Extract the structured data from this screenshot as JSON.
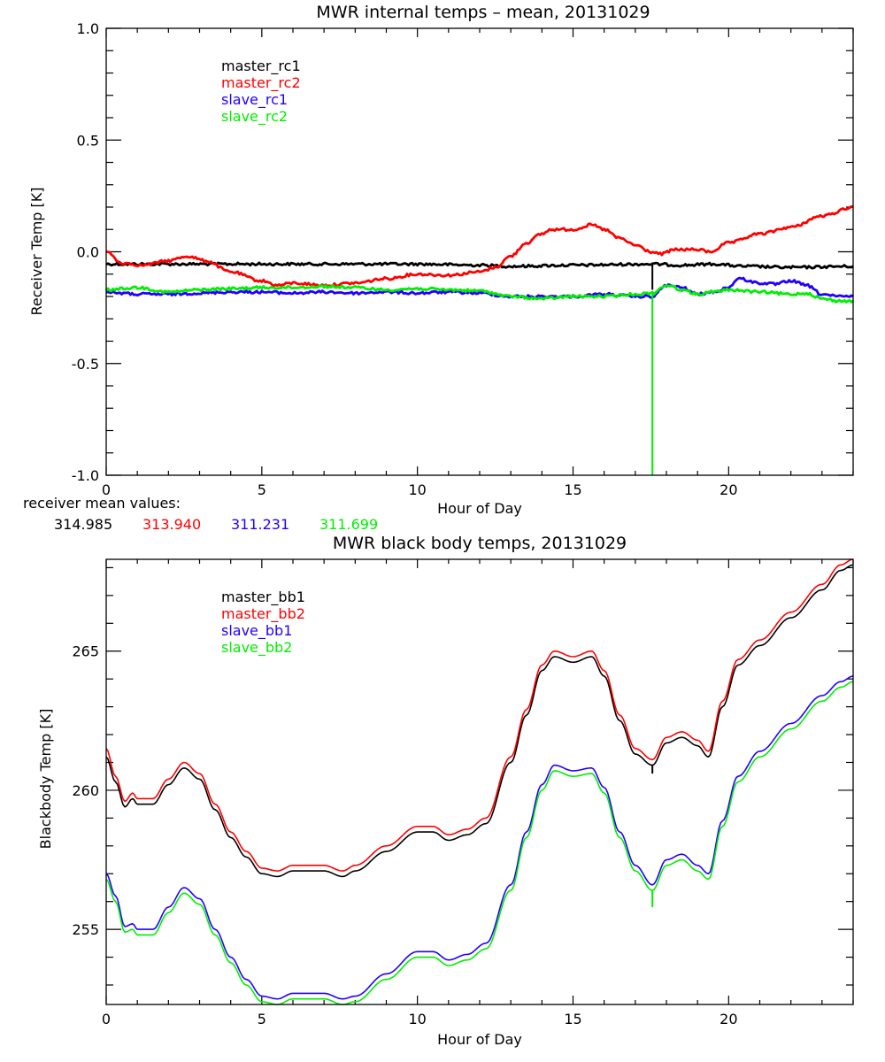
{
  "chart_data": [
    {
      "type": "line",
      "title": "MWR internal temps – mean, 20131029",
      "xlabel": "Hour of Day",
      "ylabel": "Receiver Temp [K]",
      "xlim": [
        0,
        24
      ],
      "ylim": [
        -1.0,
        1.0
      ],
      "xticks": [
        0,
        5,
        10,
        15,
        20
      ],
      "xtick_labels": [
        "0",
        "5",
        "10",
        "15",
        "20"
      ],
      "x_minor_step": 1,
      "yticks": [
        -1.0,
        -0.5,
        0.0,
        0.5,
        1.0
      ],
      "ytick_labels": [
        "-1.0",
        "-0.5",
        "0.0",
        "0.5",
        "1.0"
      ],
      "y_minor_step": 0.1,
      "grid": false,
      "legend": {
        "placement": "top-left-inside",
        "entries": [
          "master_rc1",
          "master_rc2",
          "slave_rc1",
          "slave_rc2"
        ]
      },
      "series": [
        {
          "name": "master_rc1",
          "color": "#000000",
          "noisy": true,
          "x": [
            0,
            2,
            4,
            6,
            8,
            10,
            12,
            13,
            15,
            17.5,
            18.5,
            19.5,
            20.5,
            22,
            24
          ],
          "y": [
            -0.055,
            -0.055,
            -0.055,
            -0.055,
            -0.055,
            -0.055,
            -0.06,
            -0.065,
            -0.06,
            -0.055,
            -0.06,
            -0.055,
            -0.065,
            -0.07,
            -0.065
          ],
          "spike": {
            "x": 17.55,
            "y": -0.17
          }
        },
        {
          "name": "master_rc2",
          "color": "#ff0000",
          "noisy": true,
          "x": [
            0,
            0.5,
            1.2,
            2,
            2.6,
            3.2,
            4,
            5,
            5.5,
            6,
            7,
            8,
            9,
            10,
            11,
            12,
            12.5,
            13,
            13.5,
            14,
            14.3,
            15,
            15.6,
            16,
            16.5,
            17,
            17.5,
            17.8,
            18.3,
            19,
            19.4,
            20,
            21,
            22,
            23,
            24
          ],
          "y": [
            0.0,
            -0.05,
            -0.06,
            -0.04,
            -0.02,
            -0.04,
            -0.09,
            -0.13,
            -0.15,
            -0.14,
            -0.15,
            -0.14,
            -0.12,
            -0.1,
            -0.105,
            -0.09,
            -0.07,
            -0.02,
            0.04,
            0.08,
            0.1,
            0.1,
            0.12,
            0.1,
            0.06,
            0.03,
            0.0,
            -0.01,
            0.01,
            0.01,
            0.0,
            0.04,
            0.08,
            0.11,
            0.16,
            0.2
          ]
        },
        {
          "name": "slave_rc1",
          "color": "#2200ff",
          "noisy": true,
          "x": [
            0,
            1,
            2,
            3,
            4,
            5,
            6,
            7,
            8,
            9,
            10,
            11,
            12,
            13,
            14,
            15,
            16,
            17,
            17.55,
            18,
            18.5,
            19,
            19.5,
            20,
            20.3,
            21,
            21.5,
            22,
            22.5,
            23,
            23.5,
            24
          ],
          "y": [
            -0.18,
            -0.19,
            -0.19,
            -0.185,
            -0.18,
            -0.18,
            -0.185,
            -0.18,
            -0.185,
            -0.18,
            -0.185,
            -0.18,
            -0.185,
            -0.2,
            -0.2,
            -0.2,
            -0.19,
            -0.2,
            -0.2,
            -0.15,
            -0.16,
            -0.19,
            -0.18,
            -0.16,
            -0.12,
            -0.14,
            -0.145,
            -0.13,
            -0.15,
            -0.19,
            -0.2,
            -0.2
          ],
          "spike": null
        },
        {
          "name": "slave_rc2",
          "color": "#00ee00",
          "noisy": true,
          "x": [
            0,
            1,
            2,
            3,
            4,
            5,
            6,
            7,
            8,
            9,
            10,
            11,
            12,
            13,
            14,
            15,
            16,
            17,
            17.55,
            18,
            18.5,
            19,
            19.5,
            20,
            21,
            22,
            22.5,
            23,
            23.5,
            24
          ],
          "y": [
            -0.17,
            -0.16,
            -0.18,
            -0.17,
            -0.165,
            -0.16,
            -0.16,
            -0.155,
            -0.16,
            -0.17,
            -0.165,
            -0.17,
            -0.175,
            -0.2,
            -0.21,
            -0.2,
            -0.2,
            -0.19,
            -0.185,
            -0.15,
            -0.17,
            -0.19,
            -0.18,
            -0.17,
            -0.18,
            -0.19,
            -0.185,
            -0.21,
            -0.22,
            -0.22
          ],
          "spike": {
            "x": 17.55,
            "y": -1.0
          }
        }
      ],
      "annotation": {
        "label": "receiver mean values:",
        "values": [
          {
            "text": "314.985",
            "color": "#000000"
          },
          {
            "text": "313.940",
            "color": "#ff0000"
          },
          {
            "text": "311.231",
            "color": "#2200ff"
          },
          {
            "text": "311.699",
            "color": "#00ee00"
          }
        ]
      }
    },
    {
      "type": "line",
      "title": "MWR black body temps, 20131029",
      "xlabel": "Hour of Day",
      "ylabel": "Blackbody Temp [K]",
      "xlim": [
        0,
        24
      ],
      "ylim": [
        252.3,
        268.3
      ],
      "xticks": [
        0,
        5,
        10,
        15,
        20
      ],
      "xtick_labels": [
        "0",
        "5",
        "10",
        "15",
        "20"
      ],
      "x_minor_step": 1,
      "yticks": [
        255,
        260,
        265
      ],
      "ytick_labels": [
        "255",
        "260",
        "265"
      ],
      "y_minor_step": 1,
      "grid": false,
      "legend": {
        "placement": "top-left-inside",
        "entries": [
          "master_bb1",
          "master_bb2",
          "slave_bb1",
          "slave_bb2"
        ]
      },
      "series": [
        {
          "name": "master_bb1",
          "color": "#000000",
          "x": [
            0,
            0.3,
            0.6,
            0.85,
            1.0,
            1.5,
            2.0,
            2.5,
            3.0,
            3.5,
            4.0,
            4.5,
            5.0,
            5.5,
            6.0,
            7.0,
            7.6,
            8.0,
            9.0,
            10.0,
            10.5,
            11.0,
            11.6,
            12.2,
            13.0,
            13.5,
            14.0,
            14.4,
            15.0,
            15.6,
            16.0,
            16.5,
            17.0,
            17.55,
            18.0,
            18.5,
            19.0,
            19.35,
            19.8,
            20.3,
            21.0,
            22.0,
            23.0,
            23.6,
            24
          ],
          "y": [
            261.2,
            260.3,
            259.4,
            259.7,
            259.5,
            259.5,
            260.2,
            260.8,
            260.4,
            259.3,
            258.3,
            257.6,
            257.0,
            256.9,
            257.1,
            257.1,
            256.9,
            257.1,
            257.8,
            258.5,
            258.5,
            258.2,
            258.4,
            258.8,
            261.0,
            262.7,
            264.3,
            264.8,
            264.6,
            264.8,
            264.1,
            262.5,
            261.3,
            260.9,
            261.7,
            261.9,
            261.6,
            261.2,
            263.0,
            264.5,
            265.2,
            266.2,
            267.2,
            267.9,
            268.1
          ],
          "spike": {
            "x": 17.55,
            "y": 260.6
          }
        },
        {
          "name": "master_bb2",
          "color": "#ff0000",
          "x": [
            0,
            0.3,
            0.6,
            0.85,
            1.0,
            1.5,
            2.0,
            2.5,
            3.0,
            3.5,
            4.0,
            4.5,
            5.0,
            5.5,
            6.0,
            7.0,
            7.6,
            8.0,
            9.0,
            10.0,
            10.5,
            11.0,
            11.6,
            12.2,
            13.0,
            13.5,
            14.0,
            14.4,
            15.0,
            15.6,
            16.0,
            16.5,
            17.0,
            17.55,
            18.0,
            18.5,
            19.0,
            19.35,
            19.8,
            20.3,
            21.0,
            22.0,
            23.0,
            23.6,
            24
          ],
          "y": [
            261.5,
            260.5,
            259.6,
            259.9,
            259.7,
            259.7,
            260.4,
            261.0,
            260.6,
            259.5,
            258.5,
            257.8,
            257.2,
            257.1,
            257.3,
            257.3,
            257.1,
            257.3,
            258.0,
            258.7,
            258.7,
            258.4,
            258.6,
            259.0,
            261.2,
            262.9,
            264.5,
            265.0,
            264.8,
            265.0,
            264.3,
            262.7,
            261.5,
            261.1,
            261.9,
            262.1,
            261.8,
            261.4,
            263.2,
            264.7,
            265.4,
            266.4,
            267.4,
            268.1,
            268.3
          ]
        },
        {
          "name": "slave_bb1",
          "color": "#2200ff",
          "x": [
            0,
            0.3,
            0.6,
            0.85,
            1.0,
            1.5,
            2.0,
            2.5,
            3.0,
            3.5,
            4.0,
            4.5,
            5.0,
            5.5,
            6.0,
            7.0,
            7.6,
            8.0,
            9.0,
            10.0,
            10.5,
            11.0,
            11.6,
            12.2,
            13.0,
            13.5,
            14.0,
            14.4,
            15.0,
            15.6,
            16.0,
            16.5,
            17.0,
            17.55,
            18.0,
            18.5,
            19.0,
            19.35,
            19.8,
            20.3,
            21.0,
            22.0,
            23.0,
            23.6,
            24
          ],
          "y": [
            257.0,
            256.2,
            255.1,
            255.2,
            255.0,
            255.0,
            255.8,
            256.5,
            256.1,
            255.0,
            254.0,
            253.2,
            252.6,
            252.5,
            252.7,
            252.7,
            252.5,
            252.6,
            253.4,
            254.2,
            254.2,
            253.9,
            254.1,
            254.5,
            256.6,
            258.5,
            260.2,
            260.9,
            260.7,
            260.8,
            260.1,
            258.5,
            257.3,
            256.6,
            257.5,
            257.7,
            257.3,
            257.0,
            258.9,
            260.5,
            261.4,
            262.4,
            263.4,
            263.9,
            264.1
          ]
        },
        {
          "name": "slave_bb2",
          "color": "#00ee00",
          "x": [
            0,
            0.3,
            0.6,
            0.85,
            1.0,
            1.5,
            2.0,
            2.5,
            3.0,
            3.5,
            4.0,
            4.5,
            5.0,
            5.5,
            6.0,
            7.0,
            7.6,
            8.0,
            9.0,
            10.0,
            10.5,
            11.0,
            11.6,
            12.2,
            13.0,
            13.5,
            14.0,
            14.4,
            15.0,
            15.6,
            16.0,
            16.5,
            17.0,
            17.55,
            18.0,
            18.5,
            19.0,
            19.35,
            19.8,
            20.3,
            21.0,
            22.0,
            23.0,
            23.6,
            24
          ],
          "y": [
            256.8,
            256.0,
            254.9,
            255.0,
            254.8,
            254.8,
            255.6,
            256.3,
            255.9,
            254.8,
            253.8,
            253.0,
            252.4,
            252.3,
            252.5,
            252.5,
            252.3,
            252.4,
            253.2,
            254.0,
            254.0,
            253.7,
            253.9,
            254.3,
            256.4,
            258.3,
            260.0,
            260.7,
            260.5,
            260.6,
            259.9,
            258.3,
            257.1,
            256.4,
            257.3,
            257.5,
            257.1,
            256.8,
            258.7,
            260.3,
            261.2,
            262.2,
            263.2,
            263.7,
            263.9
          ],
          "spike": {
            "x": 17.55,
            "y": 255.8
          }
        }
      ]
    }
  ]
}
